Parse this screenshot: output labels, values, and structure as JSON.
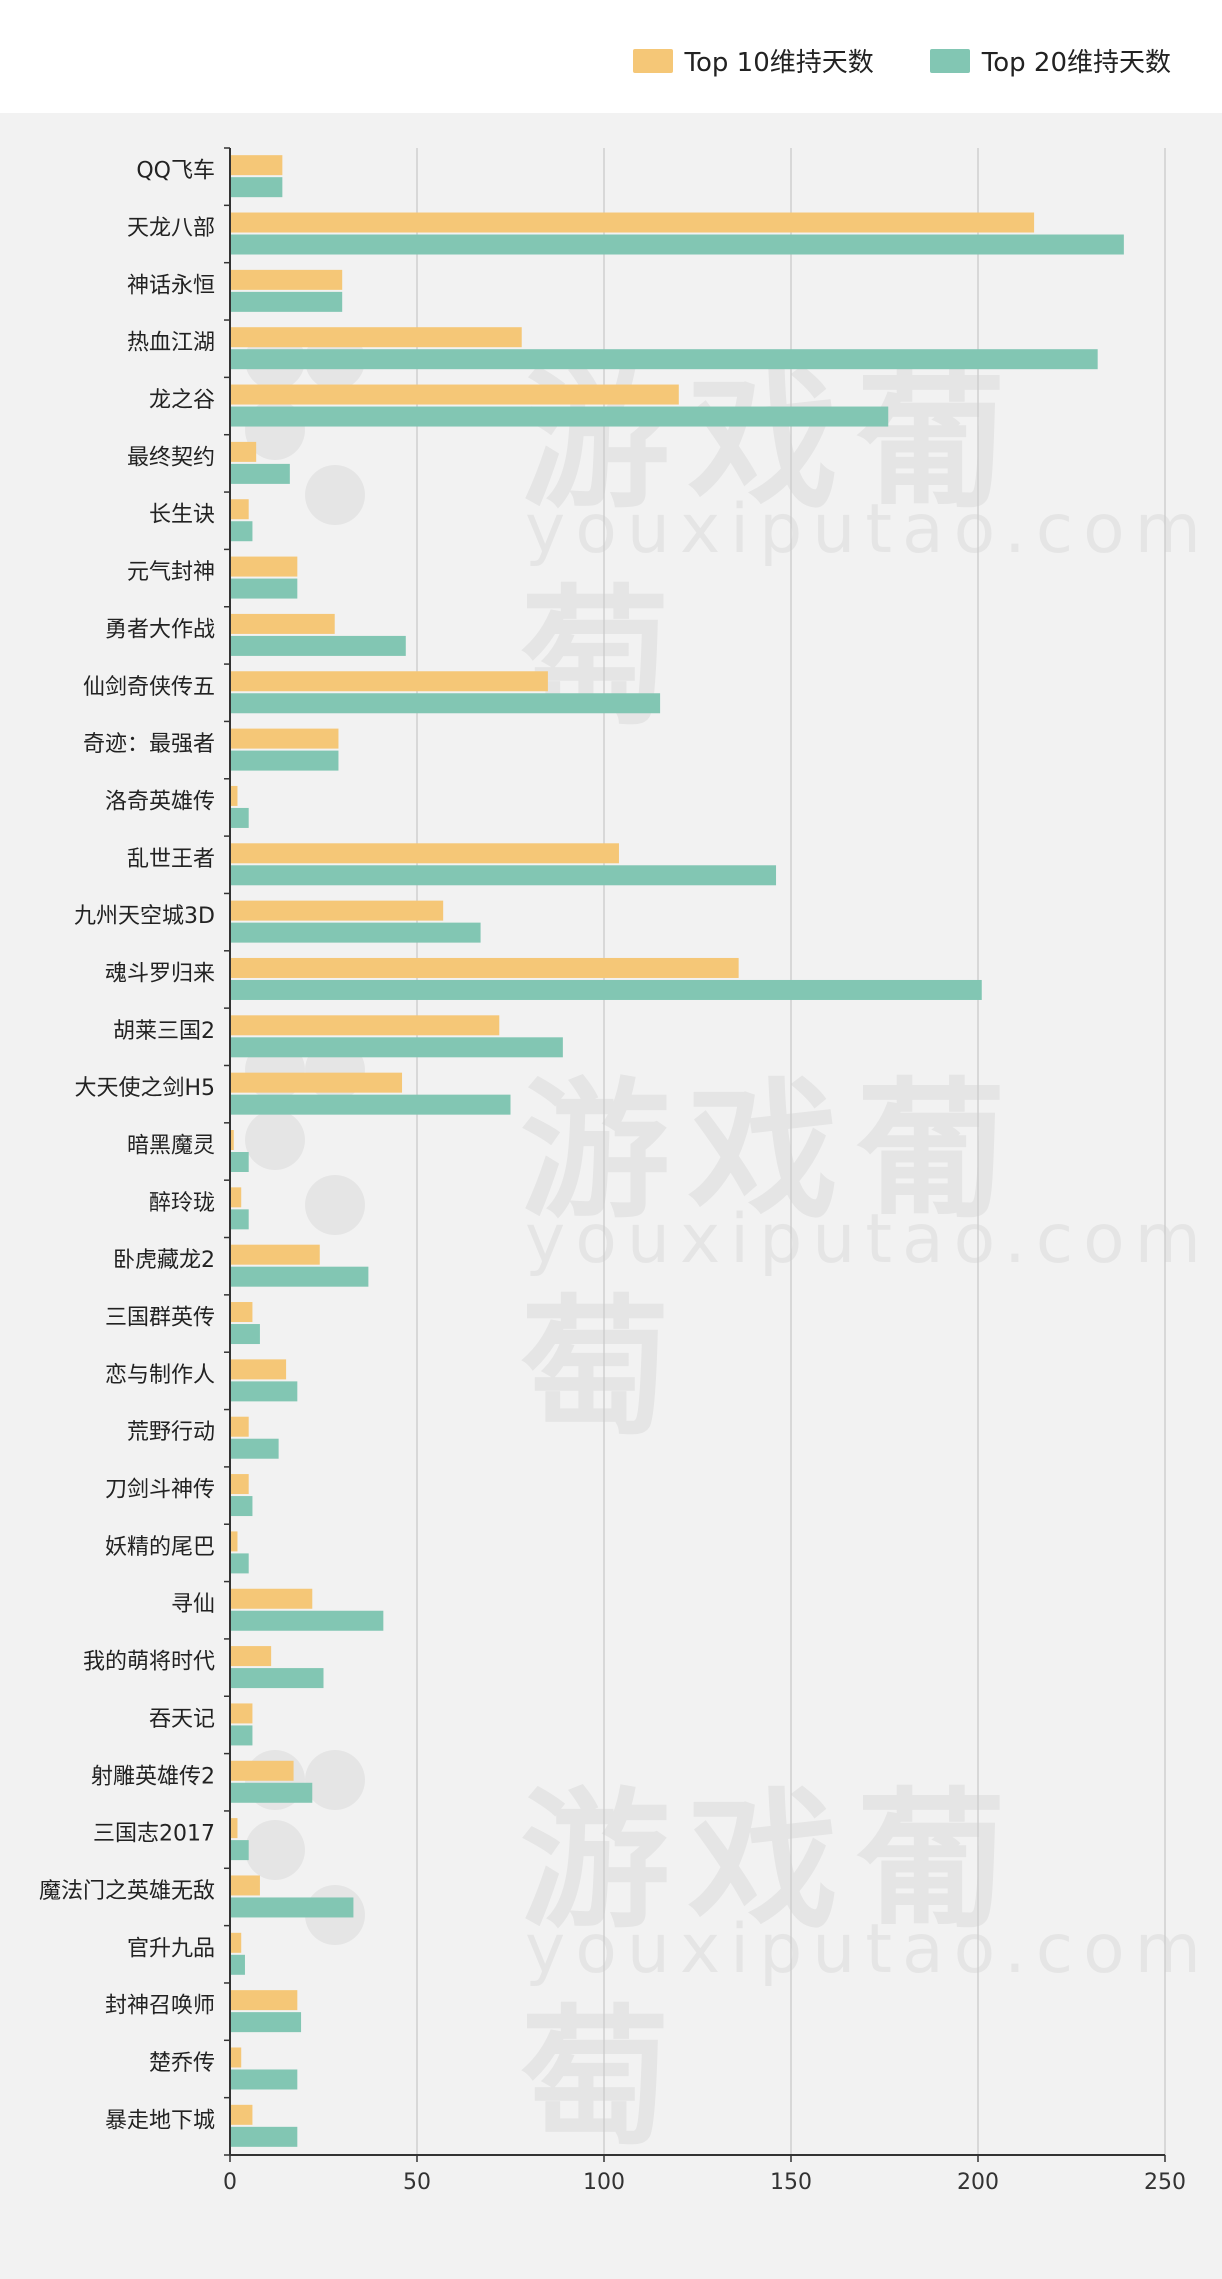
{
  "legend": {
    "series1_label": "Top 10维持天数",
    "series2_label": "Top 20维持天数"
  },
  "watermark": {
    "text_cn": "游戏葡萄",
    "text_en": "youxiputao.com"
  },
  "colors": {
    "series1": "#f5c777",
    "series2": "#82c6b3",
    "background": "#f2f2f2",
    "gridline": "#c8c8c8",
    "axis": "#333333"
  },
  "chart_data": {
    "type": "bar",
    "orientation": "horizontal",
    "categories": [
      "QQ飞车",
      "天龙八部",
      "神话永恒",
      "热血江湖",
      "龙之谷",
      "最终契约",
      "长生诀",
      "元气封神",
      "勇者大作战",
      "仙剑奇侠传五",
      "奇迹：最强者",
      "洛奇英雄传",
      "乱世王者",
      "九州天空城3D",
      "魂斗罗归来",
      "胡莱三国2",
      "大天使之剑H5",
      "暗黑魔灵",
      "醉玲珑",
      "卧虎藏龙2",
      "三国群英传",
      "恋与制作人",
      "荒野行动",
      "刀剑斗神传",
      "妖精的尾巴",
      "寻仙",
      "我的萌将时代",
      "吞天记",
      "射雕英雄传2",
      "三国志2017",
      "魔法门之英雄无敌",
      "官升九品",
      "封神召唤师",
      "楚乔传",
      "暴走地下城"
    ],
    "series": [
      {
        "name": "Top 10维持天数",
        "values": [
          14,
          215,
          30,
          78,
          120,
          7,
          5,
          18,
          28,
          85,
          29,
          2,
          104,
          57,
          136,
          72,
          46,
          1,
          3,
          24,
          6,
          15,
          5,
          5,
          2,
          22,
          11,
          6,
          17,
          2,
          8,
          3,
          18,
          3,
          6
        ]
      },
      {
        "name": "Top 20维持天数",
        "values": [
          14,
          239,
          30,
          232,
          176,
          16,
          6,
          18,
          47,
          115,
          29,
          5,
          146,
          67,
          201,
          89,
          75,
          5,
          5,
          37,
          8,
          18,
          13,
          6,
          5,
          41,
          25,
          6,
          22,
          5,
          33,
          4,
          19,
          18,
          18
        ]
      }
    ],
    "xlim": [
      0,
      250
    ],
    "xticks": [
      0,
      50,
      100,
      150,
      200,
      250
    ],
    "grid": true,
    "legend_position": "top-right"
  }
}
